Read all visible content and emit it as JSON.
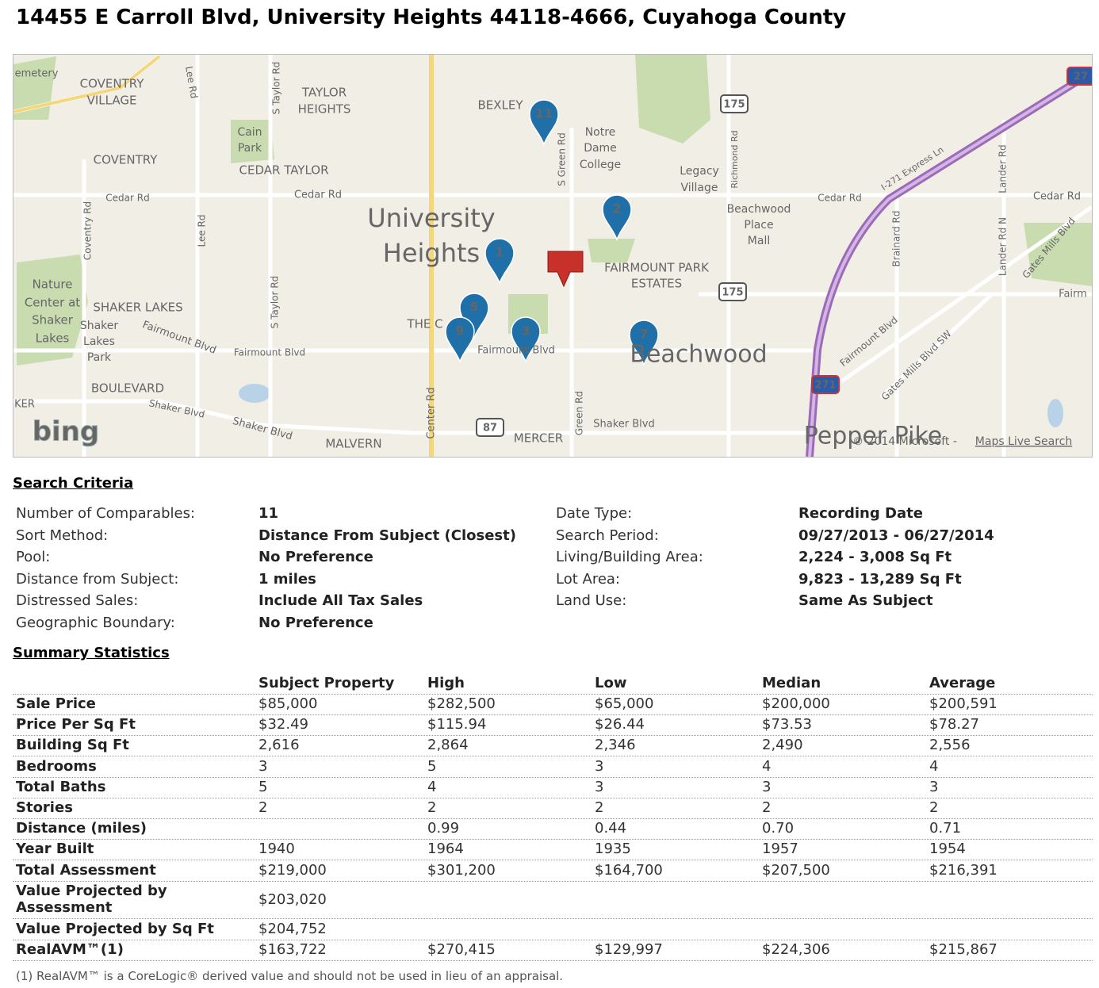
{
  "header": {
    "title": "14455 E Carroll Blvd, University Heights 44118-4666, Cuyahoga County"
  },
  "map": {
    "labels": [
      "emetery",
      "COVENTRY",
      "VILLAGE",
      "Lee Rd",
      "S Taylor Rd",
      "TAYLOR",
      "HEIGHTS",
      "Cain",
      "Park",
      "COVENTRY",
      "CEDAR TAYLOR",
      "Cedar Rd",
      "Cedar Rd",
      "University",
      "Heights",
      "BEXLEY",
      "Notre",
      "Dame",
      "College",
      "S Green Rd",
      "Legacy",
      "Village",
      "Richmond Rd",
      "Beachwood",
      "Place",
      "Mall",
      "Cedar Rd",
      "I-271 Express Ln",
      "Cedar Rd",
      "Lander Rd",
      "Coventry Rd",
      "Lee Rd",
      "FAIRMOUNT PARK",
      "ESTATES",
      "Brainard Rd",
      "Lander Rd N",
      "Gates Mills Blvd",
      "Nature",
      "Center at",
      "Shaker",
      "Lakes",
      "SHAKER LAKES",
      "Shaker",
      "Lakes",
      "Park",
      "S Taylor Rd",
      "THE C",
      "Fairmount Blvd",
      "Fairmount Blvd",
      "Fairmount Blvd",
      "Beachwood",
      "Fairmount Blvd",
      "Gates Mills Blvd SW",
      "Fairm",
      "BOULEVARD",
      "KER",
      "Shaker Blvd",
      "Shaker Blvd",
      "Center Rd",
      "Green Rd",
      "Shaker Blvd",
      "MERCER",
      "MALVERN",
      "Pepper Pike",
      "bing"
    ],
    "shields": [
      "175",
      "175",
      "87",
      "271",
      "27"
    ],
    "markers": [
      "11",
      "2",
      "1",
      "5",
      "9",
      "3",
      "7"
    ],
    "attribution": "© 2014 Microsoft -",
    "link": "Maps Live Search"
  },
  "search_criteria": {
    "heading": "Search Criteria",
    "left": [
      [
        "Number of Comparables:",
        "11"
      ],
      [
        "Sort Method:",
        "Distance From Subject (Closest)"
      ],
      [
        "Pool:",
        "No Preference"
      ],
      [
        "Distance from Subject:",
        "1 miles"
      ],
      [
        "Distressed Sales:",
        "Include All Tax Sales"
      ],
      [
        "Geographic Boundary:",
        "No Preference"
      ]
    ],
    "right": [
      [
        "Date Type:",
        "Recording Date"
      ],
      [
        "Search Period:",
        "09/27/2013 - 06/27/2014"
      ],
      [
        "Living/Building Area:",
        "2,224 - 3,008 Sq Ft"
      ],
      [
        "Lot Area:",
        "9,823 - 13,289 Sq Ft"
      ],
      [
        "Land Use:",
        "Same As Subject"
      ]
    ]
  },
  "summary_statistics": {
    "heading": "Summary Statistics",
    "columns": [
      "Subject Property",
      "High",
      "Low",
      "Median",
      "Average"
    ],
    "rows": [
      [
        "Sale Price",
        "$85,000",
        "$282,500",
        "$65,000",
        "$200,000",
        "$200,591"
      ],
      [
        "Price Per Sq Ft",
        "$32.49",
        "$115.94",
        "$26.44",
        "$73.53",
        "$78.27"
      ],
      [
        "Building Sq Ft",
        "2,616",
        "2,864",
        "2,346",
        "2,490",
        "2,556"
      ],
      [
        "Bedrooms",
        "3",
        "5",
        "3",
        "4",
        "4"
      ],
      [
        "Total Baths",
        "5",
        "4",
        "3",
        "3",
        "3"
      ],
      [
        "Stories",
        "2",
        "2",
        "2",
        "2",
        "2"
      ],
      [
        "Distance (miles)",
        null,
        "0.99",
        "0.44",
        "0.70",
        "0.71"
      ],
      [
        "Year Built",
        "1940",
        "1964",
        "1935",
        "1957",
        "1954"
      ],
      [
        "Total Assessment",
        "$219,000",
        "$301,200",
        "$164,700",
        "$207,500",
        "$216,391"
      ],
      [
        "Value Projected by Assessment",
        "$203,020",
        null,
        null,
        null,
        null
      ],
      [
        "Value Projected by Sq Ft",
        "$204,752",
        null,
        null,
        null,
        null
      ],
      [
        "RealAVM™(1)",
        "$163,722",
        "$270,415",
        "$129,997",
        "$224,306",
        "$215,867"
      ]
    ],
    "footnote": "(1)  RealAVM™ is a CoreLogic® derived value and should not be used in lieu of an appraisal."
  }
}
